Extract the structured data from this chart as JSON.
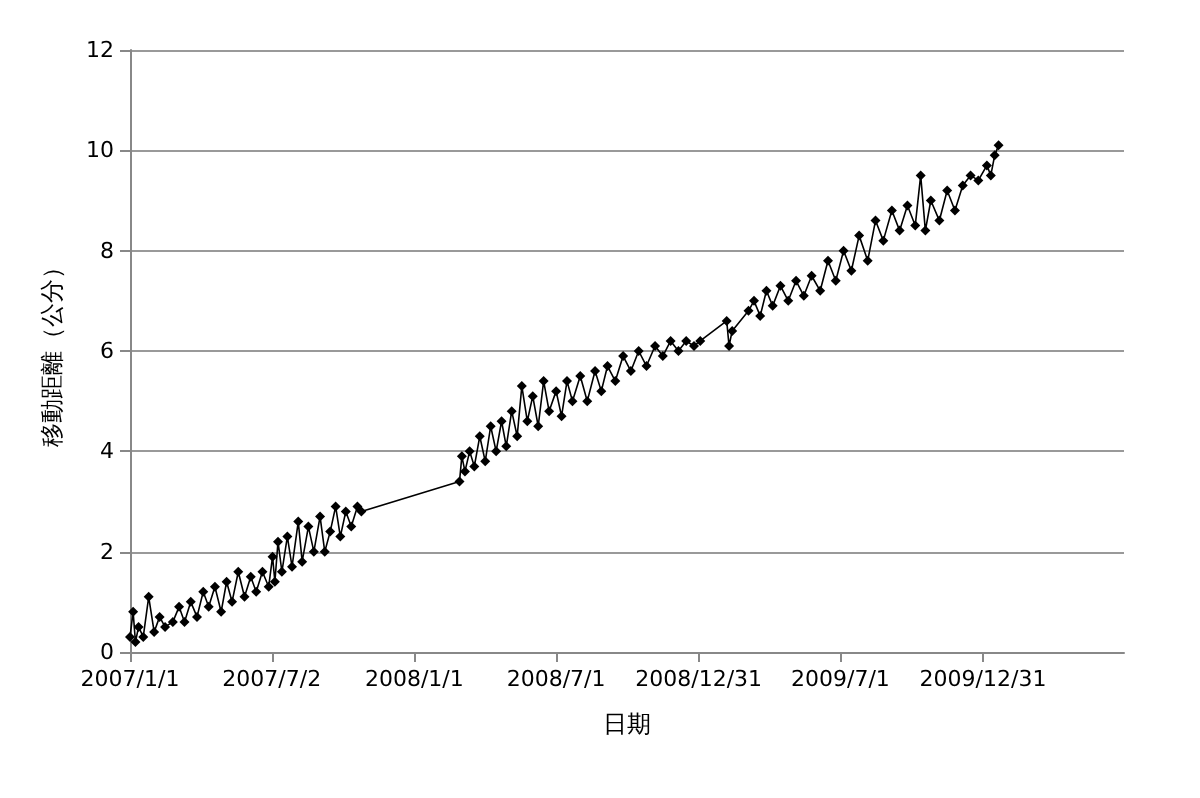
{
  "chart_data": {
    "type": "line",
    "xlabel": "日期",
    "ylabel": "移動距離（公分）",
    "grid": "y",
    "marker": "diamond",
    "line_style": "solid",
    "xlim": [
      "2007-01-01",
      "2010-06-30"
    ],
    "xticks": [
      {
        "value": "2007-01-01",
        "label": "2007/1/1"
      },
      {
        "value": "2007-07-02",
        "label": "2007/7/2"
      },
      {
        "value": "2008-01-01",
        "label": "2008/1/1"
      },
      {
        "value": "2008-07-01",
        "label": "2008/7/1"
      },
      {
        "value": "2008-12-31",
        "label": "2008/12/31"
      },
      {
        "value": "2009-07-01",
        "label": "2009/7/1"
      },
      {
        "value": "2009-12-31",
        "label": "2009/12/31"
      }
    ],
    "ylim": [
      0,
      12
    ],
    "yticks": [
      0,
      2,
      4,
      6,
      8,
      10,
      12
    ],
    "series": [
      {
        "color": "#000000",
        "x": [
          "2007-01-01",
          "2007-01-05",
          "2007-01-08",
          "2007-01-12",
          "2007-01-18",
          "2007-01-25",
          "2007-02-01",
          "2007-02-08",
          "2007-02-15",
          "2007-02-25",
          "2007-03-05",
          "2007-03-12",
          "2007-03-20",
          "2007-03-28",
          "2007-04-05",
          "2007-04-12",
          "2007-04-20",
          "2007-04-28",
          "2007-05-05",
          "2007-05-12",
          "2007-05-20",
          "2007-05-28",
          "2007-06-05",
          "2007-06-12",
          "2007-06-20",
          "2007-06-28",
          "2007-07-03",
          "2007-07-06",
          "2007-07-10",
          "2007-07-15",
          "2007-07-22",
          "2007-07-28",
          "2007-08-05",
          "2007-08-10",
          "2007-08-18",
          "2007-08-25",
          "2007-09-02",
          "2007-09-08",
          "2007-09-15",
          "2007-09-22",
          "2007-09-28",
          "2007-10-05",
          "2007-10-12",
          "2007-10-20",
          "2007-10-25",
          "2008-02-28",
          "2008-03-02",
          "2008-03-06",
          "2008-03-12",
          "2008-03-18",
          "2008-03-25",
          "2008-04-01",
          "2008-04-08",
          "2008-04-15",
          "2008-04-22",
          "2008-04-28",
          "2008-05-05",
          "2008-05-12",
          "2008-05-18",
          "2008-05-25",
          "2008-06-01",
          "2008-06-08",
          "2008-06-15",
          "2008-06-22",
          "2008-07-01",
          "2008-07-08",
          "2008-07-15",
          "2008-07-22",
          "2008-08-01",
          "2008-08-10",
          "2008-08-20",
          "2008-08-28",
          "2008-09-05",
          "2008-09-15",
          "2008-09-25",
          "2008-10-05",
          "2008-10-15",
          "2008-10-25",
          "2008-11-05",
          "2008-11-15",
          "2008-11-25",
          "2008-12-05",
          "2008-12-15",
          "2008-12-25",
          "2009-01-02",
          "2009-02-05",
          "2009-02-08",
          "2009-02-12",
          "2009-03-05",
          "2009-03-12",
          "2009-03-20",
          "2009-03-28",
          "2009-04-05",
          "2009-04-15",
          "2009-04-25",
          "2009-05-05",
          "2009-05-15",
          "2009-05-25",
          "2009-06-05",
          "2009-06-15",
          "2009-06-25",
          "2009-07-05",
          "2009-07-15",
          "2009-07-25",
          "2009-08-05",
          "2009-08-15",
          "2009-08-25",
          "2009-09-05",
          "2009-09-15",
          "2009-09-25",
          "2009-10-05",
          "2009-10-12",
          "2009-10-18",
          "2009-10-25",
          "2009-11-05",
          "2009-11-15",
          "2009-11-25",
          "2009-12-05",
          "2009-12-15",
          "2009-12-25",
          "2010-01-05",
          "2010-01-10",
          "2010-01-15",
          "2010-01-20"
        ],
        "values": [
          0.3,
          0.8,
          0.2,
          0.5,
          0.3,
          1.1,
          0.4,
          0.7,
          0.5,
          0.6,
          0.9,
          0.6,
          1.0,
          0.7,
          1.2,
          0.9,
          1.3,
          0.8,
          1.4,
          1.0,
          1.6,
          1.1,
          1.5,
          1.2,
          1.6,
          1.3,
          1.9,
          1.4,
          2.2,
          1.6,
          2.3,
          1.7,
          2.6,
          1.8,
          2.5,
          2.0,
          2.7,
          2.0,
          2.4,
          2.9,
          2.3,
          2.8,
          2.5,
          2.9,
          2.8,
          3.4,
          3.9,
          3.6,
          4.0,
          3.7,
          4.3,
          3.8,
          4.5,
          4.0,
          4.6,
          4.1,
          4.8,
          4.3,
          5.3,
          4.6,
          5.1,
          4.5,
          5.4,
          4.8,
          5.2,
          4.7,
          5.4,
          5.0,
          5.5,
          5.0,
          5.6,
          5.2,
          5.7,
          5.4,
          5.9,
          5.6,
          6.0,
          5.7,
          6.1,
          5.9,
          6.2,
          6.0,
          6.2,
          6.1,
          6.2,
          6.6,
          6.1,
          6.4,
          6.8,
          7.0,
          6.7,
          7.2,
          6.9,
          7.3,
          7.0,
          7.4,
          7.1,
          7.5,
          7.2,
          7.8,
          7.4,
          8.0,
          7.6,
          8.3,
          7.8,
          8.6,
          8.2,
          8.8,
          8.4,
          8.9,
          8.5,
          9.5,
          8.4,
          9.0,
          8.6,
          9.2,
          8.8,
          9.3,
          9.5,
          9.4,
          9.7,
          9.5,
          9.9,
          10.1
        ]
      }
    ]
  }
}
